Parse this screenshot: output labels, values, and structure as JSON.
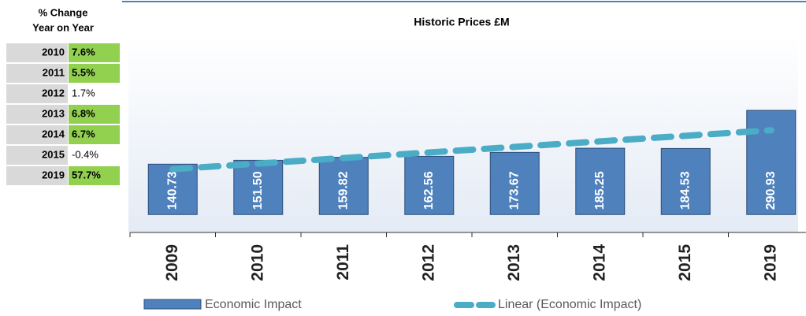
{
  "table": {
    "header": [
      "% Change",
      "Year on Year"
    ],
    "rows": [
      {
        "year": "2010",
        "change": "7.6%",
        "highlight": true
      },
      {
        "year": "2011",
        "change": "5.5%",
        "highlight": true
      },
      {
        "year": "2012",
        "change": "1.7%",
        "highlight": false
      },
      {
        "year": "2013",
        "change": "6.8%",
        "highlight": true
      },
      {
        "year": "2014",
        "change": "6.7%",
        "highlight": true
      },
      {
        "year": "2015",
        "change": "-0.4%",
        "highlight": false
      },
      {
        "year": "2019",
        "change": "57.7%",
        "highlight": true
      }
    ],
    "highlight_color": "#92d050",
    "year_color": "#d9d9d9"
  },
  "chart_data": {
    "type": "bar",
    "title": "Historic Prices £M",
    "categories": [
      "2009",
      "2010",
      "2011",
      "2012",
      "2013",
      "2014",
      "2015",
      "2019"
    ],
    "series": [
      {
        "name": "Economic Impact",
        "color": "#4f81bd",
        "values": [
          140.73,
          151.5,
          159.82,
          162.56,
          173.67,
          185.25,
          184.53,
          290.93
        ],
        "value_labels": [
          "140.73",
          "151.50",
          "159.82",
          "162.56",
          "173.67",
          "185.25",
          "184.53",
          "290.93"
        ]
      }
    ],
    "trendline": {
      "name": "Linear (Economic Impact)",
      "color": "#4bacc6"
    },
    "ylim": [
      -50,
      500
    ]
  }
}
